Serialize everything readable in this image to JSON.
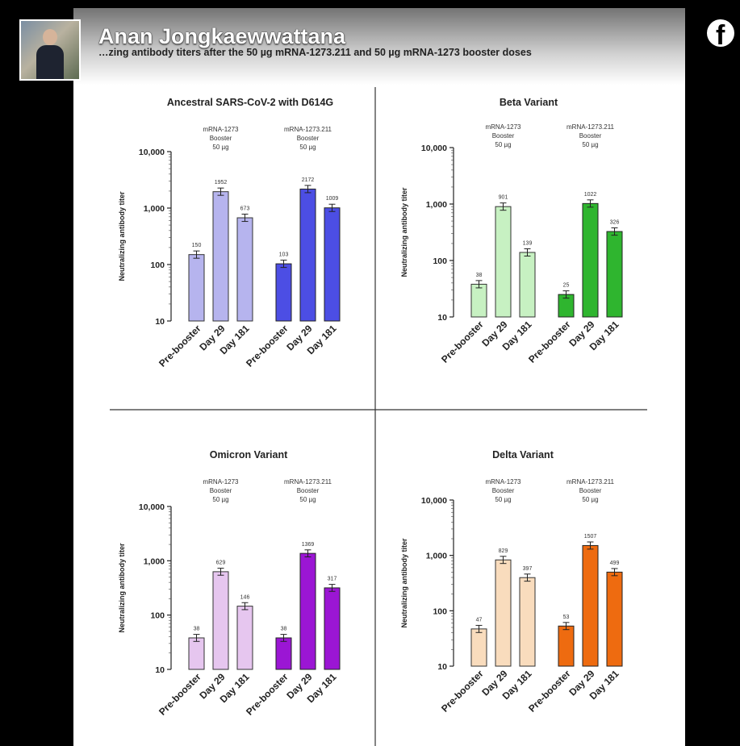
{
  "post": {
    "poster_name": "Anan Jongkaewwattana",
    "caption": "…zing antibody titers after the 50 µg mRNA-1273.211 and 50 µg mRNA-1273 booster doses",
    "network_icon": "facebook-logo-icon"
  },
  "chart_data": [
    {
      "type": "bar",
      "title": "Ancestral SARS-CoV-2 with D614G",
      "ylabel": "Neutralizing antibody titer",
      "yscale": "log",
      "ylim": [
        10,
        10000
      ],
      "yticks": [
        "10",
        "100",
        "1,000",
        "10,000"
      ],
      "groups": [
        {
          "label": "mRNA-1273\nBooster\n50 µg",
          "color": "#b6b4ee",
          "categories": [
            "Pre-booster",
            "Day 29",
            "Day 181"
          ],
          "values": [
            150,
            1952,
            673
          ],
          "value_labels": [
            "150",
            "1952",
            "673"
          ]
        },
        {
          "label": "mRNA-1273.211\nBooster\n50 µg",
          "color": "#4c4ee4",
          "categories": [
            "Pre-booster",
            "Day 29",
            "Day 181"
          ],
          "values": [
            103,
            2172,
            1009
          ],
          "value_labels": [
            "103",
            "2172",
            "1009"
          ]
        }
      ]
    },
    {
      "type": "bar",
      "title": "Beta Variant",
      "ylabel": "Neutralizing antibody titer",
      "yscale": "log",
      "ylim": [
        10,
        10000
      ],
      "yticks": [
        "10",
        "100",
        "1,000",
        "10,000"
      ],
      "groups": [
        {
          "label": "mRNA-1273\nBooster\n50 µg",
          "color": "#c7f1c2",
          "categories": [
            "Pre-booster",
            "Day 29",
            "Day 181"
          ],
          "values": [
            38,
            901,
            139
          ],
          "value_labels": [
            "38",
            "901",
            "139"
          ]
        },
        {
          "label": "mRNA-1273.211\nBooster\n50 µg",
          "color": "#2fb52f",
          "categories": [
            "Pre-booster",
            "Day 29",
            "Day 181"
          ],
          "values": [
            25,
            1022,
            326
          ],
          "value_labels": [
            "25",
            "1022",
            "326"
          ]
        }
      ]
    },
    {
      "type": "bar",
      "title": "Omicron Variant",
      "ylabel": "Neutralizing antibody titer",
      "yscale": "log",
      "ylim": [
        10,
        10000
      ],
      "yticks": [
        "10",
        "100",
        "1,000",
        "10,000"
      ],
      "groups": [
        {
          "label": "mRNA-1273\nBooster\n50 µg",
          "color": "#e6c6ef",
          "categories": [
            "Pre-booster",
            "Day 29",
            "Day 181"
          ],
          "values": [
            38,
            629,
            146
          ],
          "value_labels": [
            "38",
            "629",
            "146"
          ]
        },
        {
          "label": "mRNA-1273.211\nBooster\n50 µg",
          "color": "#9b16d4",
          "categories": [
            "Pre-booster",
            "Day 29",
            "Day 181"
          ],
          "values": [
            38,
            1369,
            317
          ],
          "value_labels": [
            "38",
            "1369",
            "317"
          ]
        }
      ]
    },
    {
      "type": "bar",
      "title": "Delta Variant",
      "ylabel": "Neutralizing antibody titer",
      "yscale": "log",
      "ylim": [
        10,
        10000
      ],
      "yticks": [
        "10",
        "100",
        "1,000",
        "10,000"
      ],
      "groups": [
        {
          "label": "mRNA-1273\nBooster\n50 µg",
          "color": "#f9dcbd",
          "categories": [
            "Pre-booster",
            "Day 29",
            "Day 181"
          ],
          "values": [
            47,
            829,
            397
          ],
          "value_labels": [
            "47",
            "829",
            "397"
          ]
        },
        {
          "label": "mRNA-1273.211\nBooster\n50 µg",
          "color": "#ee6b10",
          "categories": [
            "Pre-booster",
            "Day 29",
            "Day 181"
          ],
          "values": [
            53,
            1507,
            499
          ],
          "value_labels": [
            "53",
            "1507",
            "499"
          ]
        }
      ]
    }
  ]
}
